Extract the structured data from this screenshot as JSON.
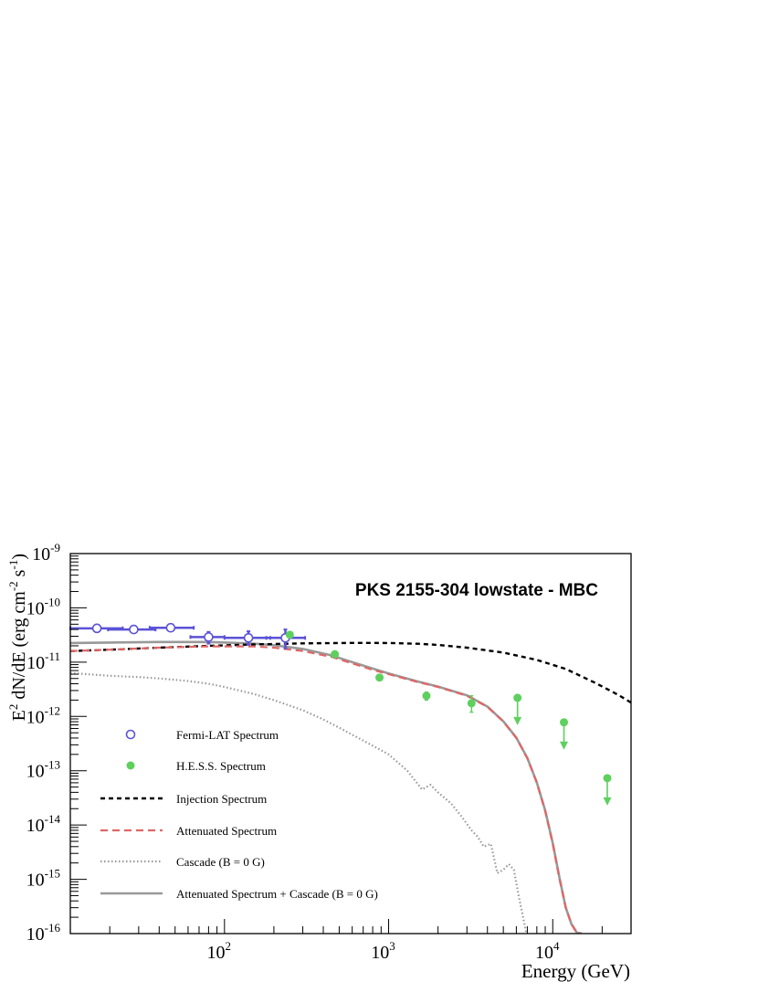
{
  "chart_data": {
    "type": "scatter",
    "title": "PKS 2155-304 lowstate - MBC",
    "xlabel": "Energy (GeV)",
    "ylabel_parts": {
      "e": "E",
      "e_exp": "2",
      "mid": " dN/dE (erg cm",
      "cm_exp": "-2",
      "s": " s",
      "s_exp": "-1",
      "end": ")"
    },
    "x_scale": "log",
    "y_scale": "log",
    "xlim": [
      11.5,
      30000
    ],
    "ylim": [
      1e-16,
      1e-09
    ],
    "x_tick_labels": [
      {
        "value": 100,
        "base": "10",
        "exp": "2"
      },
      {
        "value": 1000,
        "base": "10",
        "exp": "3"
      },
      {
        "value": 10000,
        "base": "10",
        "exp": "4"
      }
    ],
    "y_tick_labels": [
      {
        "value": 1e-09,
        "base": "10",
        "exp": "-9"
      },
      {
        "value": 1e-10,
        "base": "10",
        "exp": "-10"
      },
      {
        "value": 1e-11,
        "base": "10",
        "exp": "-11"
      },
      {
        "value": 1e-12,
        "base": "10",
        "exp": "-12"
      },
      {
        "value": 1e-13,
        "base": "10",
        "exp": "-13"
      },
      {
        "value": 1e-14,
        "base": "10",
        "exp": "-14"
      },
      {
        "value": 1e-15,
        "base": "10",
        "exp": "-15"
      },
      {
        "value": 1e-16,
        "base": "10",
        "exp": "-16"
      }
    ],
    "legend_position": "lower-left",
    "colors": {
      "fermi": "#5b52d6",
      "hess": "#5ed05e",
      "injection": "#000000",
      "attenuated": "#e06666",
      "cascade": "#999999",
      "total": "#999999"
    },
    "series": [
      {
        "name": "Fermi-LAT Spectrum",
        "style": "open-circle",
        "points": [
          {
            "x": 16.7,
            "y": 4.2e-11,
            "xlo": 11.5,
            "xhi": 24,
            "ylo": 3.9e-11,
            "yhi": 4.6e-11
          },
          {
            "x": 28,
            "y": 4e-11,
            "xlo": 19.5,
            "xhi": 38,
            "ylo": 3.7e-11,
            "yhi": 4.4e-11
          },
          {
            "x": 47,
            "y": 4.3e-11,
            "xlo": 35,
            "xhi": 65,
            "ylo": 4e-11,
            "yhi": 4.7e-11
          },
          {
            "x": 80,
            "y": 2.9e-11,
            "xlo": 62,
            "xhi": 100,
            "ylo": 2.2e-11,
            "yhi": 3.6e-11
          },
          {
            "x": 140,
            "y": 2.8e-11,
            "xlo": 100,
            "xhi": 190,
            "ylo": 2.1e-11,
            "yhi": 3.7e-11
          },
          {
            "x": 235,
            "y": 2.8e-11,
            "xlo": 180,
            "xhi": 310,
            "ylo": 1.8e-11,
            "yhi": 4e-11
          }
        ]
      },
      {
        "name": "H.E.S.S. Spectrum",
        "style": "filled-circle",
        "points": [
          {
            "x": 250,
            "y": 3.2e-11
          },
          {
            "x": 470,
            "y": 1.4e-11,
            "ylo": 1.3e-11,
            "yhi": 1.55e-11
          },
          {
            "x": 880,
            "y": 5.2e-12,
            "ylo": 4.7e-12,
            "yhi": 5.8e-12
          },
          {
            "x": 1700,
            "y": 2.4e-12,
            "ylo": 2e-12,
            "yhi": 2.8e-12
          },
          {
            "x": 3200,
            "y": 1.75e-12,
            "ylo": 1.2e-12,
            "yhi": 2.4e-12
          }
        ],
        "upper_limits": [
          {
            "x": 6100,
            "y": 2.2e-12
          },
          {
            "x": 11700,
            "y": 7.8e-13
          },
          {
            "x": 21500,
            "y": 7.3e-14
          }
        ]
      },
      {
        "name": "Injection Spectrum",
        "style": "dashed",
        "x": [
          11.5,
          20,
          40,
          80,
          150,
          300,
          600,
          1000,
          1500,
          2000,
          3000,
          5000,
          8000,
          12000,
          18000,
          25000,
          30000
        ],
        "y": [
          1.6e-11,
          1.7e-11,
          1.85e-11,
          2e-11,
          2.12e-11,
          2.22e-11,
          2.26e-11,
          2.25e-11,
          2.18e-11,
          2.08e-11,
          1.85e-11,
          1.5e-11,
          1.1e-11,
          7.5e-12,
          4.2e-12,
          2.5e-12,
          1.8e-12
        ]
      },
      {
        "name": "Attenuated Spectrum",
        "style": "dashed",
        "x": [
          11.5,
          20,
          40,
          80,
          150,
          200,
          300,
          450,
          600,
          800,
          1000,
          1500,
          2000,
          3000,
          4000,
          5000,
          6000,
          7000,
          8000,
          9000,
          10000,
          11000,
          12000,
          13000,
          14000,
          15000
        ],
        "y": [
          1.6e-11,
          1.7e-11,
          1.85e-11,
          1.95e-11,
          1.95e-11,
          1.85e-11,
          1.6e-11,
          1.25e-11,
          9.5e-12,
          7.2e-12,
          6e-12,
          4.3e-12,
          3.5e-12,
          2.4e-12,
          1.5e-12,
          8e-13,
          4e-13,
          1.7e-13,
          6e-14,
          1.8e-14,
          4.5e-15,
          1e-15,
          3e-16,
          1.5e-16,
          1.05e-16,
          1e-16
        ]
      },
      {
        "name": "Cascade (B = 0 G)",
        "style": "dotted",
        "x": [
          11.5,
          20,
          30,
          40,
          60,
          80,
          100,
          150,
          200,
          300,
          400,
          500,
          700,
          1000,
          1300,
          1600,
          1800,
          2000,
          2400,
          2800,
          3200,
          3500,
          3800,
          4200,
          4600,
          5000,
          5400,
          5800,
          6200,
          6600,
          6900
        ],
        "y": [
          6.3e-12,
          5.6e-12,
          5.3e-12,
          5e-12,
          4.5e-12,
          4e-12,
          3.5e-12,
          2.6e-12,
          2e-12,
          1.3e-12,
          8.8e-13,
          6.2e-13,
          3.6e-13,
          2e-13,
          1e-13,
          4.5e-14,
          5.5e-14,
          4e-14,
          2.5e-14,
          1.4e-14,
          8e-15,
          6e-15,
          4e-15,
          4.5e-15,
          1.3e-15,
          1.5e-15,
          1.9e-15,
          1.5e-15,
          5e-16,
          2e-16,
          1e-16
        ]
      },
      {
        "name": "Attenuated Spectrum + Cascade (B = 0 G)",
        "style": "solid",
        "x": [
          11.5,
          20,
          40,
          80,
          150,
          200,
          300,
          450,
          600,
          800,
          1000,
          1500,
          2000,
          3000,
          4000,
          5000,
          6000,
          7000,
          8000,
          9000,
          10000,
          11000,
          12000,
          13000,
          14000,
          15000
        ],
        "y": [
          2.25e-11,
          2.3e-11,
          2.35e-11,
          2.35e-11,
          2.2e-11,
          2.05e-11,
          1.75e-11,
          1.33e-11,
          1e-11,
          7.6e-12,
          6.2e-12,
          4.4e-12,
          3.55e-12,
          2.45e-12,
          1.52e-12,
          8.1e-13,
          4.05e-13,
          1.72e-13,
          6.1e-14,
          1.85e-14,
          4.6e-15,
          1.05e-15,
          3e-16,
          1.5e-16,
          1.05e-16,
          1e-16
        ]
      }
    ]
  }
}
